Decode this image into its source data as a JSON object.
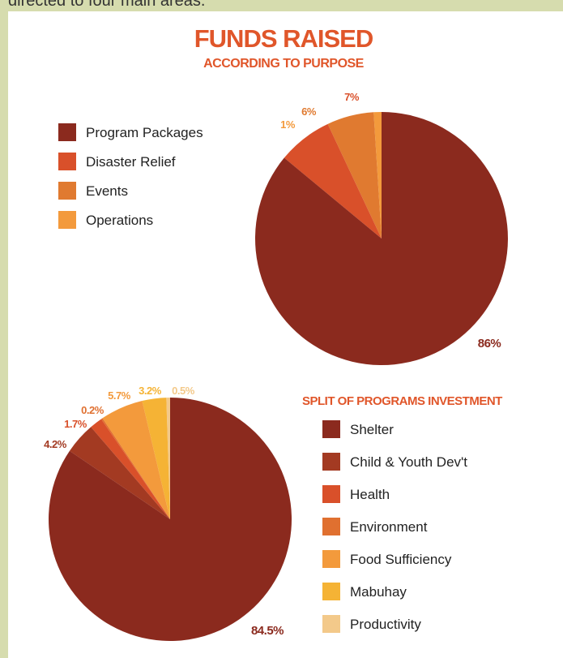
{
  "caption": "directed to four main areas.",
  "chart_data": [
    {
      "type": "pie",
      "title": "FUNDS RAISED",
      "subtitle": "ACCORDING TO PURPOSE",
      "categories": [
        "Program Packages",
        "Disaster Relief",
        "Events",
        "Operations"
      ],
      "values": [
        86,
        7,
        6,
        1
      ],
      "value_labels": [
        "86%",
        "7%",
        "6%",
        "1%"
      ],
      "colors": [
        "#8b2a1e",
        "#d9502a",
        "#e07a30",
        "#f39a3c"
      ]
    },
    {
      "type": "pie",
      "title": "SPLIT OF PROGRAMS INVESTMENT",
      "categories": [
        "Shelter",
        "Child & Youth Dev't",
        "Health",
        "Environment",
        "Food Sufficiency",
        "Mabuhay",
        "Productivity"
      ],
      "values": [
        84.5,
        4.2,
        1.7,
        0.2,
        5.7,
        3.2,
        0.5
      ],
      "value_labels": [
        "84.5%",
        "4.2%",
        "1.7%",
        "0.2%",
        "5.7%",
        "3.2%",
        "0.5%"
      ],
      "colors": [
        "#8b2a1e",
        "#a33a22",
        "#d9502a",
        "#e07030",
        "#f39a3c",
        "#f5b335",
        "#f3c98a"
      ]
    }
  ]
}
